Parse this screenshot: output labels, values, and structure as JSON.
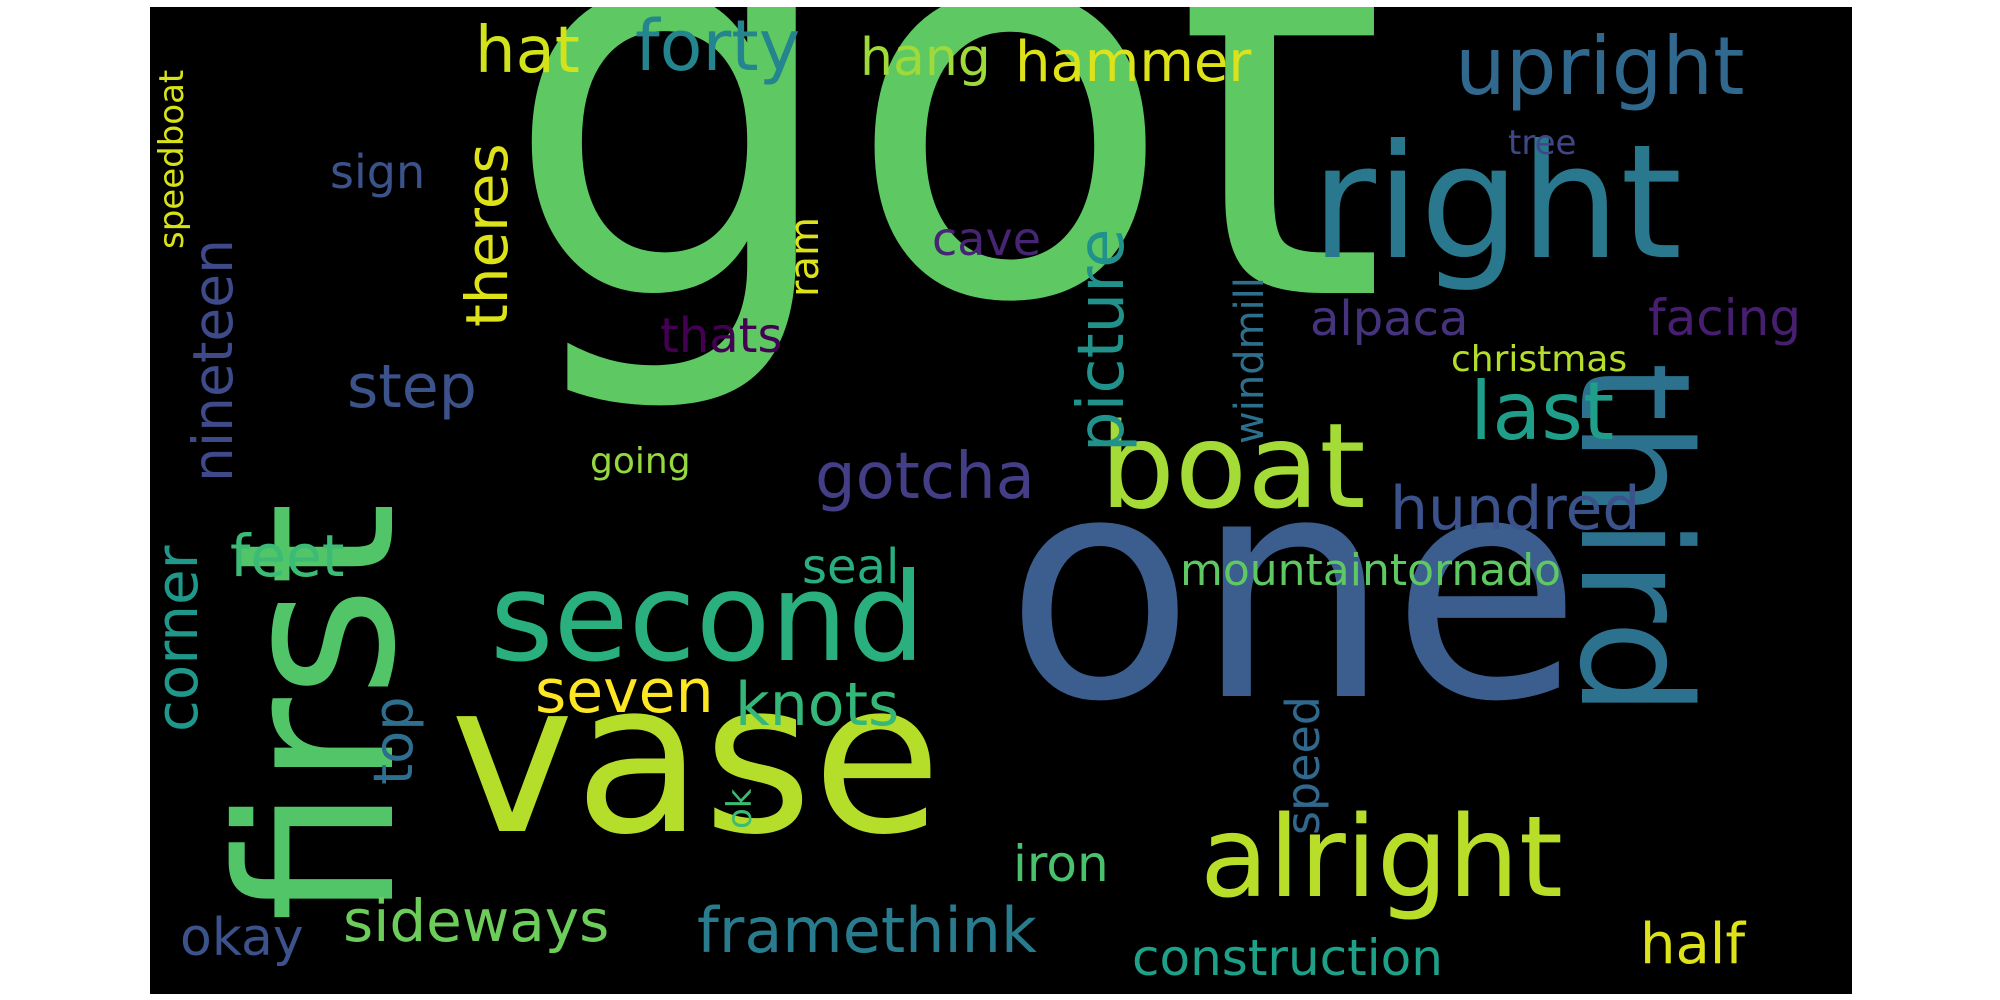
{
  "word_cloud": {
    "background": "#000000",
    "colormap": "viridis",
    "words": [
      {
        "text": "got",
        "color": "#5ec962"
      },
      {
        "text": "one",
        "color": "#3b5e8f"
      },
      {
        "text": "first",
        "color": "#52c569"
      },
      {
        "text": "vase",
        "color": "#b5de2b"
      },
      {
        "text": "right",
        "color": "#2a788e"
      },
      {
        "text": "third",
        "color": "#2c728e"
      },
      {
        "text": "boat",
        "color": "#a5db36"
      },
      {
        "text": "second",
        "color": "#2ab07f"
      },
      {
        "text": "alright",
        "color": "#b8de29"
      },
      {
        "text": "upright",
        "color": "#31688e"
      },
      {
        "text": "nineteen",
        "color": "#3e4a89"
      },
      {
        "text": "theres",
        "color": "#dde318"
      },
      {
        "text": "forty",
        "color": "#25858e"
      },
      {
        "text": "hammer",
        "color": "#dde318"
      },
      {
        "text": "hat",
        "color": "#d2e21b"
      },
      {
        "text": "hang",
        "color": "#9fda3a"
      },
      {
        "text": "corner",
        "color": "#1f988b"
      },
      {
        "text": "step",
        "color": "#3b528b"
      },
      {
        "text": "last",
        "color": "#1f9e89"
      },
      {
        "text": "gotcha",
        "color": "#433e85"
      },
      {
        "text": "picture",
        "color": "#21918c"
      },
      {
        "text": "windmill",
        "color": "#2d708e"
      },
      {
        "text": "sign",
        "color": "#3b528b"
      },
      {
        "text": "feet",
        "color": "#3bbb75"
      },
      {
        "text": "seven",
        "color": "#fde725"
      },
      {
        "text": "knots",
        "color": "#35b779"
      },
      {
        "text": "sideways",
        "color": "#6ccd5a"
      },
      {
        "text": "framethink",
        "color": "#287c8e"
      },
      {
        "text": "top",
        "color": "#2e6e8e"
      },
      {
        "text": "ok",
        "color": "#3bbb75"
      },
      {
        "text": "okay",
        "color": "#3b528b"
      },
      {
        "text": "iron",
        "color": "#4ac16d"
      },
      {
        "text": "construction",
        "color": "#1fa088"
      },
      {
        "text": "half",
        "color": "#dde318"
      },
      {
        "text": "speed",
        "color": "#31688e"
      },
      {
        "text": "speedboat",
        "color": "#d8e219"
      },
      {
        "text": "mountaintornado",
        "color": "#5ec962"
      },
      {
        "text": "hundred",
        "color": "#3b528b"
      },
      {
        "text": "seal",
        "color": "#29af7f"
      },
      {
        "text": "alpaca",
        "color": "#46337e"
      },
      {
        "text": "facing",
        "color": "#481f70"
      },
      {
        "text": "christmas",
        "color": "#b5de2b"
      },
      {
        "text": "tree",
        "color": "#404688"
      },
      {
        "text": "cave",
        "color": "#482475"
      },
      {
        "text": "thats",
        "color": "#440154"
      },
      {
        "text": "ram",
        "color": "#dde318"
      },
      {
        "text": "going",
        "color": "#95d840"
      }
    ]
  }
}
